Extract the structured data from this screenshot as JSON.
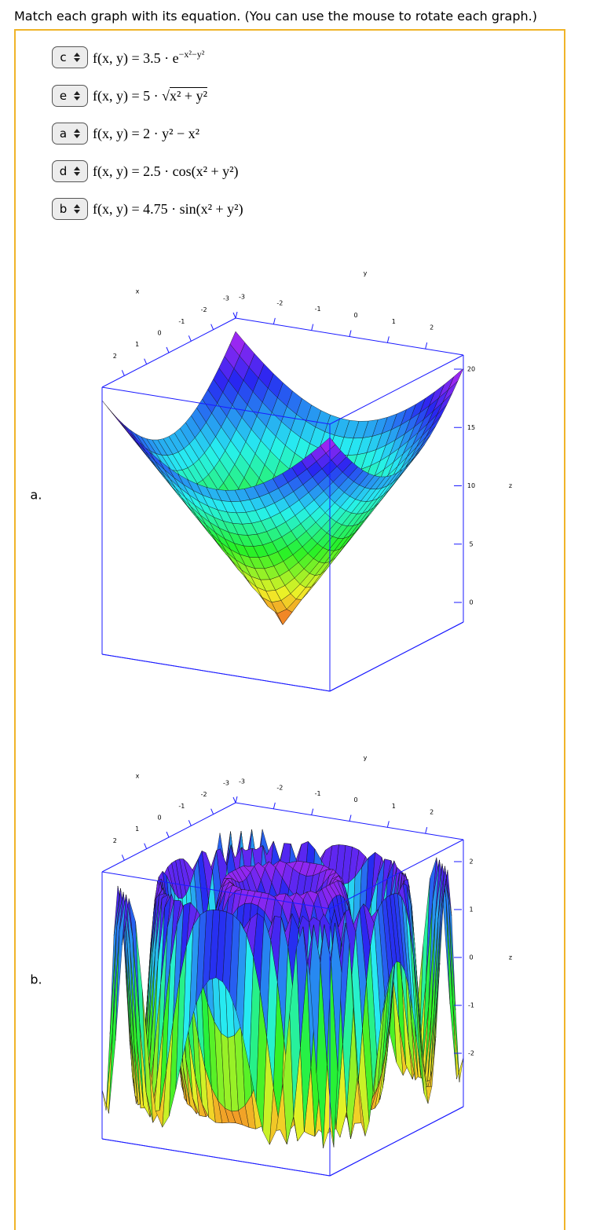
{
  "instruction": "Match each graph with its equation. (You can use the mouse to rotate each graph.)",
  "matches": [
    {
      "selected": "c",
      "prefix": "f(x, y) = 3.5 · e",
      "exponent": "−x²−y²"
    },
    {
      "selected": "e",
      "prefix": "f(x, y) = 5 · √",
      "radicand": "x² + y²"
    },
    {
      "selected": "a",
      "prefix": "f(x, y) = 2 · y² − x²"
    },
    {
      "selected": "d",
      "prefix": "f(x, y) = 2.5 · cos(x² + y²)"
    },
    {
      "selected": "b",
      "prefix": "f(x, y) = 4.75 · sin(x² + y²)"
    }
  ],
  "graphs": [
    {
      "label": "a.",
      "x_title": "x",
      "x_ticks": [
        -3,
        -2,
        -1,
        0,
        1,
        2
      ],
      "y_title": "y",
      "y_ticks": [
        -3,
        -2,
        -1,
        0,
        1,
        2
      ],
      "z_title": "z",
      "z_ticks": [
        0,
        5,
        10,
        15,
        20
      ]
    },
    {
      "label": "b.",
      "x_title": "x",
      "x_ticks": [
        -3,
        -2,
        -1,
        0,
        1,
        2
      ],
      "y_title": "y",
      "y_ticks": [
        -3,
        -2,
        -1,
        0,
        1,
        2
      ],
      "z_title": "z",
      "z_ticks": [
        -2,
        -1,
        0,
        1,
        2
      ]
    }
  ]
}
